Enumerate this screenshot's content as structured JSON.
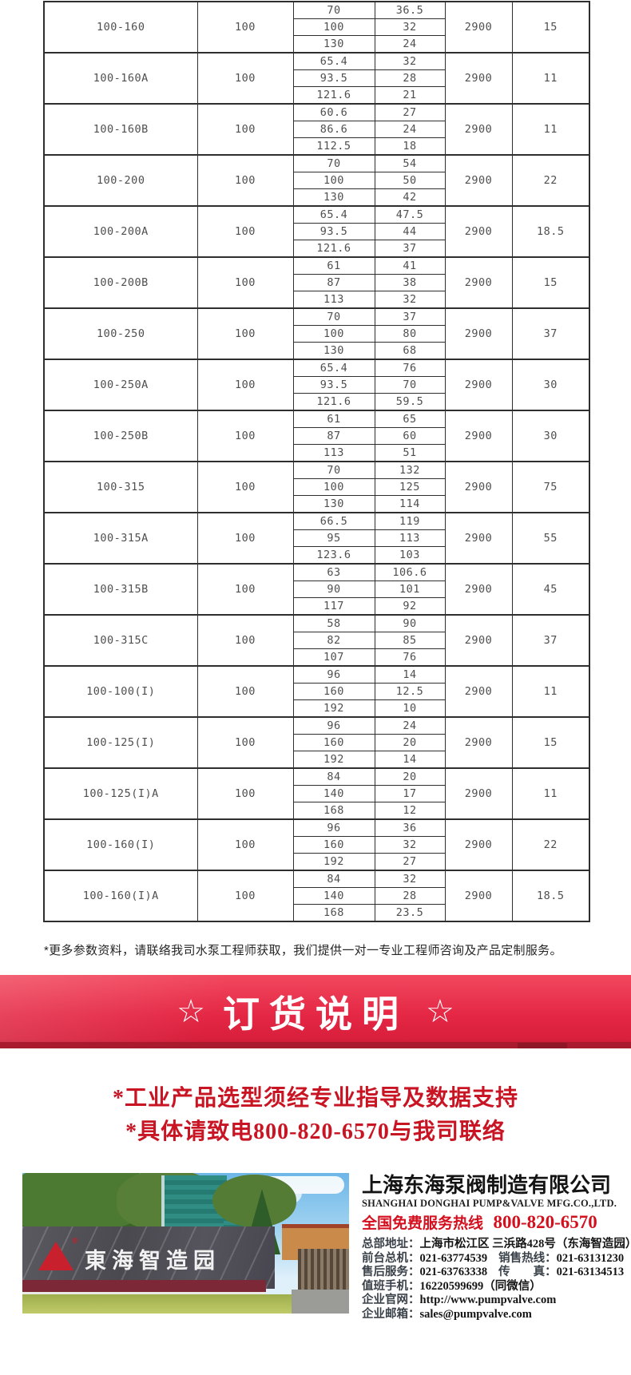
{
  "table": {
    "rows": [
      {
        "model": "100-160",
        "inlet": "100",
        "speed": "2900",
        "power": "15",
        "points": [
          {
            "q": "70",
            "h": "36.5"
          },
          {
            "q": "100",
            "h": "32"
          },
          {
            "q": "130",
            "h": "24"
          }
        ]
      },
      {
        "model": "100-160A",
        "inlet": "100",
        "speed": "2900",
        "power": "11",
        "points": [
          {
            "q": "65.4",
            "h": "32"
          },
          {
            "q": "93.5",
            "h": "28"
          },
          {
            "q": "121.6",
            "h": "21"
          }
        ]
      },
      {
        "model": "100-160B",
        "inlet": "100",
        "speed": "2900",
        "power": "11",
        "points": [
          {
            "q": "60.6",
            "h": "27"
          },
          {
            "q": "86.6",
            "h": "24"
          },
          {
            "q": "112.5",
            "h": "18"
          }
        ]
      },
      {
        "model": "100-200",
        "inlet": "100",
        "speed": "2900",
        "power": "22",
        "points": [
          {
            "q": "70",
            "h": "54"
          },
          {
            "q": "100",
            "h": "50"
          },
          {
            "q": "130",
            "h": "42"
          }
        ]
      },
      {
        "model": "100-200A",
        "inlet": "100",
        "speed": "2900",
        "power": "18.5",
        "points": [
          {
            "q": "65.4",
            "h": "47.5"
          },
          {
            "q": "93.5",
            "h": "44"
          },
          {
            "q": "121.6",
            "h": "37"
          }
        ]
      },
      {
        "model": "100-200B",
        "inlet": "100",
        "speed": "2900",
        "power": "15",
        "points": [
          {
            "q": "61",
            "h": "41"
          },
          {
            "q": "87",
            "h": "38"
          },
          {
            "q": "113",
            "h": "32"
          }
        ]
      },
      {
        "model": "100-250",
        "inlet": "100",
        "speed": "2900",
        "power": "37",
        "points": [
          {
            "q": "70",
            "h": "37"
          },
          {
            "q": "100",
            "h": "80"
          },
          {
            "q": "130",
            "h": "68"
          }
        ]
      },
      {
        "model": "100-250A",
        "inlet": "100",
        "speed": "2900",
        "power": "30",
        "points": [
          {
            "q": "65.4",
            "h": "76"
          },
          {
            "q": "93.5",
            "h": "70"
          },
          {
            "q": "121.6",
            "h": "59.5"
          }
        ]
      },
      {
        "model": "100-250B",
        "inlet": "100",
        "speed": "2900",
        "power": "30",
        "points": [
          {
            "q": "61",
            "h": "65"
          },
          {
            "q": "87",
            "h": "60"
          },
          {
            "q": "113",
            "h": "51"
          }
        ]
      },
      {
        "model": "100-315",
        "inlet": "100",
        "speed": "2900",
        "power": "75",
        "points": [
          {
            "q": "70",
            "h": "132"
          },
          {
            "q": "100",
            "h": "125"
          },
          {
            "q": "130",
            "h": "114"
          }
        ]
      },
      {
        "model": "100-315A",
        "inlet": "100",
        "speed": "2900",
        "power": "55",
        "points": [
          {
            "q": "66.5",
            "h": "119"
          },
          {
            "q": "95",
            "h": "113"
          },
          {
            "q": "123.6",
            "h": "103"
          }
        ]
      },
      {
        "model": "100-315B",
        "inlet": "100",
        "speed": "2900",
        "power": "45",
        "points": [
          {
            "q": "63",
            "h": "106.6"
          },
          {
            "q": "90",
            "h": "101"
          },
          {
            "q": "117",
            "h": "92"
          }
        ]
      },
      {
        "model": "100-315C",
        "inlet": "100",
        "speed": "2900",
        "power": "37",
        "points": [
          {
            "q": "58",
            "h": "90"
          },
          {
            "q": "82",
            "h": "85"
          },
          {
            "q": "107",
            "h": "76"
          }
        ]
      },
      {
        "model": "100-100(I)",
        "inlet": "100",
        "speed": "2900",
        "power": "11",
        "points": [
          {
            "q": "96",
            "h": "14"
          },
          {
            "q": "160",
            "h": "12.5"
          },
          {
            "q": "192",
            "h": "10"
          }
        ]
      },
      {
        "model": "100-125(I)",
        "inlet": "100",
        "speed": "2900",
        "power": "15",
        "points": [
          {
            "q": "96",
            "h": "24"
          },
          {
            "q": "160",
            "h": "20"
          },
          {
            "q": "192",
            "h": "14"
          }
        ]
      },
      {
        "model": "100-125(I)A",
        "inlet": "100",
        "speed": "2900",
        "power": "11",
        "points": [
          {
            "q": "84",
            "h": "20"
          },
          {
            "q": "140",
            "h": "17"
          },
          {
            "q": "168",
            "h": "12"
          }
        ]
      },
      {
        "model": "100-160(I)",
        "inlet": "100",
        "speed": "2900",
        "power": "22",
        "points": [
          {
            "q": "96",
            "h": "36"
          },
          {
            "q": "160",
            "h": "32"
          },
          {
            "q": "192",
            "h": "27"
          }
        ]
      },
      {
        "model": "100-160(I)A",
        "inlet": "100",
        "speed": "2900",
        "power": "18.5",
        "points": [
          {
            "q": "84",
            "h": "32"
          },
          {
            "q": "140",
            "h": "28"
          },
          {
            "q": "168",
            "h": "23.5"
          }
        ]
      }
    ]
  },
  "note": "*更多参数资料，请联络我司水泵工程师获取，我们提供一对一专业工程师咨询及产品定制服务。",
  "banner": {
    "star_left": "☆",
    "title": "订货说明",
    "star_right": "☆"
  },
  "slogans": {
    "line1": "*工业产品选型须经专业指导及数据支持",
    "line2": "*具体请致电800-820-6570与我司联络"
  },
  "footer": {
    "photo": {
      "sign_text": "東海智造园",
      "logo_mark": "®"
    },
    "company_cn": "上海东海泵阀制造有限公司",
    "company_en": "SHANGHAI DONGHAI PUMP&VALVE MFG.CO.,LTD.",
    "hotline_label": "全国免费服务热线",
    "hotline_number": "800-820-6570",
    "contacts": [
      {
        "label": "总部地址：",
        "value": "上海市松江区 三浜路428号（东海智造园）"
      },
      {
        "label": "前台总机：",
        "value": "021-63774539",
        "label2": "销售热线：",
        "value2": "021-63131230"
      },
      {
        "label": "售后服务：",
        "value": "021-63763338",
        "label2": "传　　真：",
        "value2": "021-63134513"
      },
      {
        "label": "值班手机：",
        "value": "16220599699（同微信）"
      },
      {
        "label": "企业官网：",
        "value": "http://www.pumpvalve.com"
      },
      {
        "label": "企业邮箱：",
        "value": "sales@pumpvalve.com"
      }
    ]
  },
  "colors": {
    "banner_red": "#e42745",
    "banner_strip": "#aa1a2e",
    "slogan_red": "#c81423",
    "hotline_red": "#d40f1e",
    "logo_red": "#c8202c"
  }
}
